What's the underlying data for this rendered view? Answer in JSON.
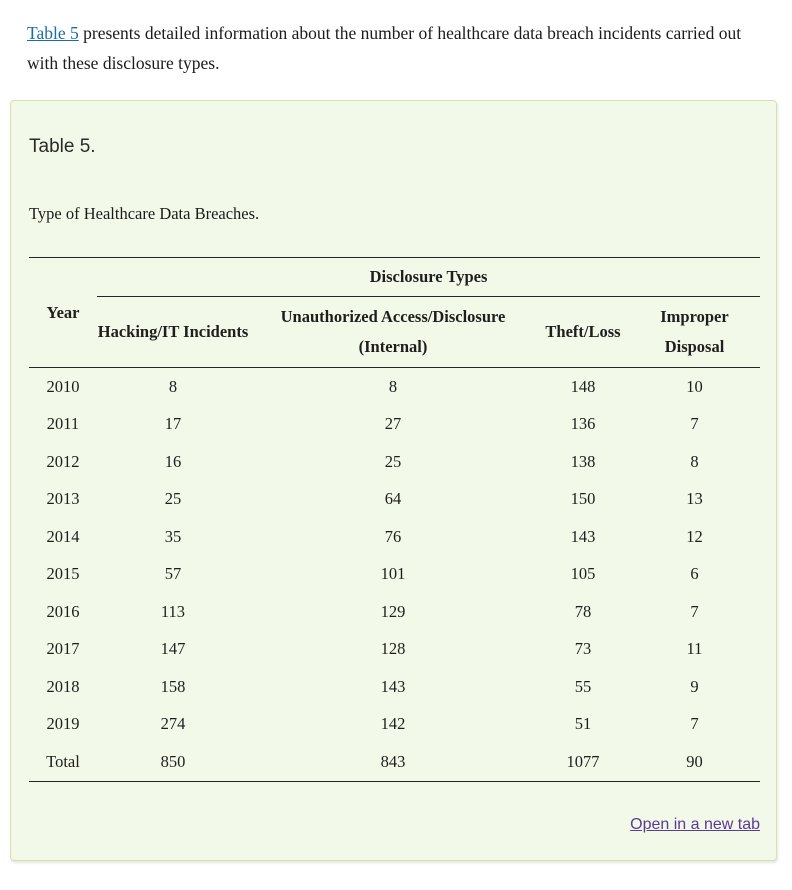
{
  "intro": {
    "link_text": "Table 5",
    "text": " presents detailed information about the number of healthcare data breach incidents carried out with these disclosure types."
  },
  "panel": {
    "title": "Table 5.",
    "caption": "Type of Healthcare Data Breaches.",
    "open_in_new_tab_label": "Open in a new tab"
  },
  "table": {
    "group_header": "Disclosure Types",
    "columns": [
      "Year",
      "Hacking/IT Incidents",
      "Unauthorized Access/Disclosure (Internal)",
      "Theft/Loss",
      "Improper Disposal"
    ],
    "rows": [
      [
        "2010",
        "8",
        "8",
        "148",
        "10"
      ],
      [
        "2011",
        "17",
        "27",
        "136",
        "7"
      ],
      [
        "2012",
        "16",
        "25",
        "138",
        "8"
      ],
      [
        "2013",
        "25",
        "64",
        "150",
        "13"
      ],
      [
        "2014",
        "35",
        "76",
        "143",
        "12"
      ],
      [
        "2015",
        "57",
        "101",
        "105",
        "6"
      ],
      [
        "2016",
        "113",
        "129",
        "78",
        "7"
      ],
      [
        "2017",
        "147",
        "128",
        "73",
        "11"
      ],
      [
        "2018",
        "158",
        "143",
        "55",
        "9"
      ],
      [
        "2019",
        "274",
        "142",
        "51",
        "7"
      ],
      [
        "Total",
        "850",
        "843",
        "1077",
        "90"
      ]
    ]
  },
  "colors": {
    "link_blue": "#1b6ca8",
    "visited_link_purple": "#5a3b96",
    "panel_background": "#f3f9e8",
    "panel_border": "#d4e4a9",
    "rule_color": "#242424"
  }
}
